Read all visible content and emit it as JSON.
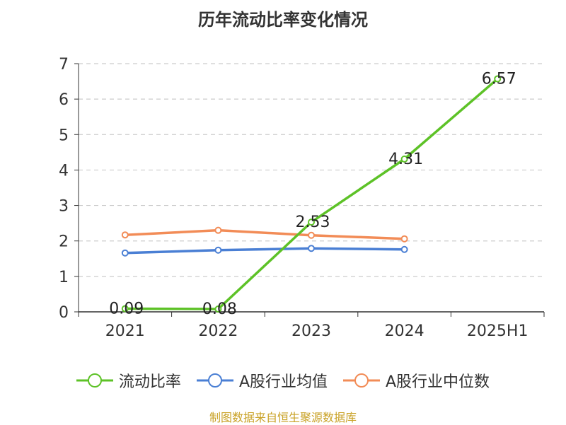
{
  "chart_data": {
    "type": "line",
    "title": "历年流动比率变化情况",
    "categories": [
      "2021",
      "2022",
      "2023",
      "2024",
      "2025H1"
    ],
    "ylim": [
      0,
      7
    ],
    "yticks": [
      0,
      1,
      2,
      3,
      4,
      5,
      6,
      7
    ],
    "grid": true,
    "legend_position": "bottom",
    "series": [
      {
        "name": "流动比率",
        "color": "#5dc227",
        "values": [
          0.09,
          0.08,
          2.53,
          4.31,
          6.57
        ],
        "labels": [
          "0.09",
          "0.08",
          "2.53",
          "4.31",
          "6.57"
        ]
      },
      {
        "name": "A股行业均值",
        "color": "#4a7fd4",
        "values": [
          1.66,
          1.74,
          1.79,
          1.76,
          null
        ]
      },
      {
        "name": "A股行业中位数",
        "color": "#f28c57",
        "values": [
          2.17,
          2.3,
          2.16,
          2.06,
          null
        ]
      }
    ]
  },
  "source": "制图数据来自恒生聚源数据库"
}
